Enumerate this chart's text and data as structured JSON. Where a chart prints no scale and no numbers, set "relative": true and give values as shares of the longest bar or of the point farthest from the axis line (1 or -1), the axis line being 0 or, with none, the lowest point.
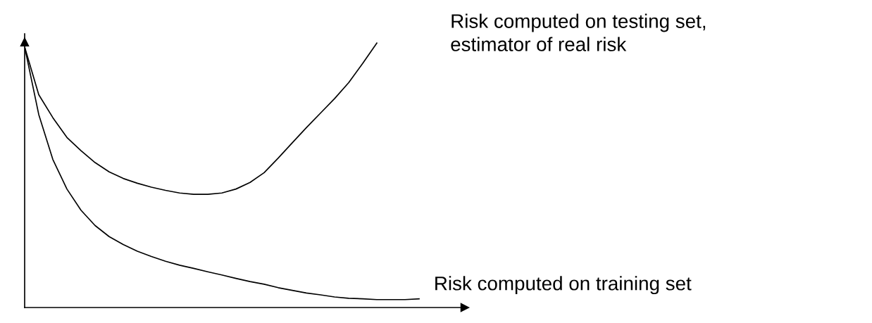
{
  "chart_data": {
    "type": "line",
    "relative": true,
    "legend": false,
    "marker": "none",
    "line_style": "solid",
    "categories": [
      null,
      null,
      null,
      null,
      null,
      null,
      null,
      null,
      null,
      null,
      null,
      null,
      null,
      null,
      null,
      null,
      null,
      null,
      null,
      null,
      null,
      null,
      null,
      null,
      null,
      null,
      null,
      null,
      null
    ],
    "series": [
      {
        "name": "Risk computed on testing set,\nestimator of real risk",
        "color": "#000000",
        "values": [
          0.985,
          0.805,
          0.718,
          0.643,
          0.593,
          0.548,
          0.513,
          0.488,
          0.47,
          0.455,
          0.443,
          0.433,
          0.428,
          0.428,
          0.433,
          0.448,
          0.473,
          0.51,
          0.565,
          0.623,
          0.68,
          0.735,
          0.79,
          0.85,
          0.923,
          1,
          null,
          null,
          null
        ]
      },
      {
        "name": "Risk computed on training set",
        "color": "#000000",
        "values": [
          0.985,
          0.73,
          0.56,
          0.448,
          0.368,
          0.31,
          0.268,
          0.238,
          0.213,
          0.193,
          0.175,
          0.16,
          0.148,
          0.135,
          0.123,
          0.11,
          0.098,
          0.088,
          0.075,
          0.065,
          0.055,
          0.048,
          0.04,
          0.035,
          0.033,
          0.03,
          0.03,
          0.03,
          0.033
        ]
      }
    ]
  }
}
